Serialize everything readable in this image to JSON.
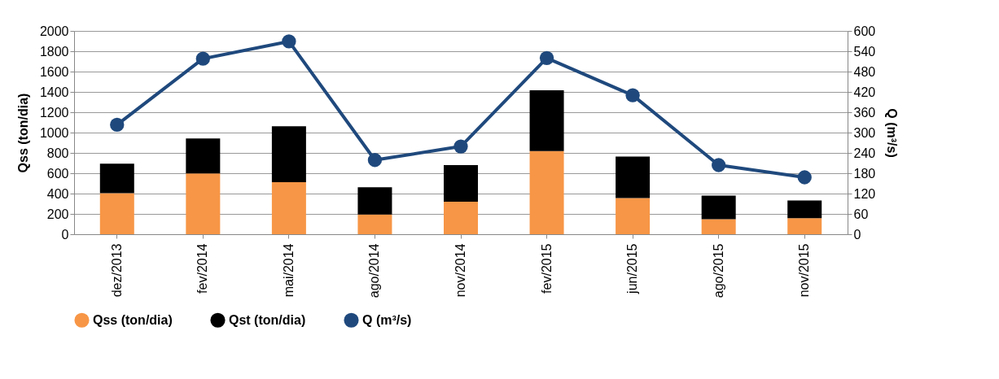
{
  "chart_data": {
    "type": "bar",
    "stacked": true,
    "ylabel": "Qss (ton/dia)",
    "y2label": "Q (m³/s)",
    "categories": [
      "dez/2013",
      "fev/2014",
      "mai/2014",
      "ago/2014",
      "nov/2014",
      "fev/2015",
      "jun/2015",
      "ago/2015",
      "nov/2015"
    ],
    "series": [
      {
        "name": "Qss (ton/dia)",
        "color": "#f79646",
        "values": [
          405,
          599,
          513,
          194,
          321,
          818,
          356,
          148,
          159
        ]
      },
      {
        "name": "Qst (ton/dia)",
        "color": "#000000",
        "values": [
          289,
          343,
          550,
          268,
          359,
          599,
          408,
          233,
          173
        ]
      },
      {
        "name": "Q (m³/s)",
        "type": "line",
        "axis": "y2",
        "color": "#1f497d",
        "marker": "circle",
        "values": [
          323,
          518,
          569,
          219,
          259,
          520,
          410,
          204,
          168
        ]
      }
    ],
    "ylim": [
      0,
      2000
    ],
    "yticks": [
      0,
      200,
      400,
      600,
      800,
      1000,
      1200,
      1400,
      1600,
      1800,
      2000
    ],
    "y2lim": [
      0,
      600
    ],
    "y2ticks": [
      0,
      60,
      120,
      180,
      240,
      300,
      360,
      420,
      480,
      540,
      600
    ],
    "grid": "y",
    "legend": "bottom"
  }
}
